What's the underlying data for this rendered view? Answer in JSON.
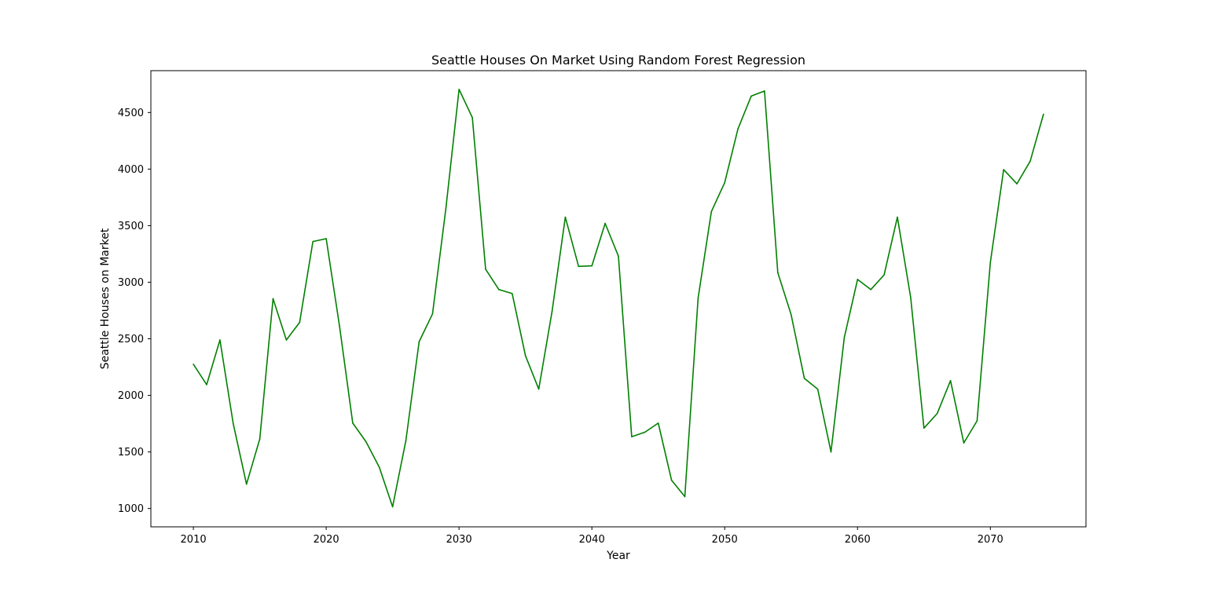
{
  "chart_data": {
    "type": "line",
    "title": "Seattle Houses On Market Using Random Forest Regression",
    "xlabel": "Year",
    "ylabel": "Seattle Houses on Market",
    "xlim": [
      2006.8,
      2077.2
    ],
    "ylim": [
      838,
      4870
    ],
    "xticks": [
      2010,
      2020,
      2030,
      2040,
      2050,
      2060,
      2070
    ],
    "yticks": [
      1000,
      1500,
      2000,
      2500,
      3000,
      3500,
      4000,
      4500
    ],
    "grid": false,
    "series": [
      {
        "color": "#008000",
        "x": [
          2010,
          2011,
          2012,
          2013,
          2014,
          2015,
          2016,
          2017,
          2018,
          2019,
          2020,
          2021,
          2022,
          2023,
          2024,
          2025,
          2026,
          2027,
          2028,
          2029,
          2030,
          2031,
          2032,
          2033,
          2034,
          2035,
          2036,
          2037,
          2038,
          2039,
          2040,
          2041,
          2042,
          2043,
          2044,
          2045,
          2046,
          2047,
          2048,
          2049,
          2050,
          2051,
          2052,
          2053,
          2054,
          2055,
          2056,
          2057,
          2058,
          2059,
          2060,
          2061,
          2062,
          2063,
          2064,
          2065,
          2066,
          2067,
          2068,
          2069,
          2070,
          2071,
          2072,
          2073,
          2074
        ],
        "values": [
          2275,
          2095,
          2490,
          1750,
          1215,
          1615,
          2855,
          2490,
          2645,
          3360,
          3385,
          2615,
          1755,
          1590,
          1365,
          1015,
          1600,
          2475,
          2720,
          3645,
          4705,
          4455,
          3115,
          2935,
          2900,
          2350,
          2055,
          2740,
          3575,
          3140,
          3145,
          3520,
          3230,
          1635,
          1675,
          1755,
          1250,
          1105,
          2860,
          3625,
          3880,
          4355,
          4645,
          4690,
          3085,
          2715,
          2150,
          2055,
          1500,
          2510,
          3025,
          2935,
          3065,
          3575,
          2865,
          1710,
          1840,
          2130,
          1580,
          1775,
          3175,
          3995,
          3870,
          4070,
          4485
        ]
      }
    ]
  }
}
